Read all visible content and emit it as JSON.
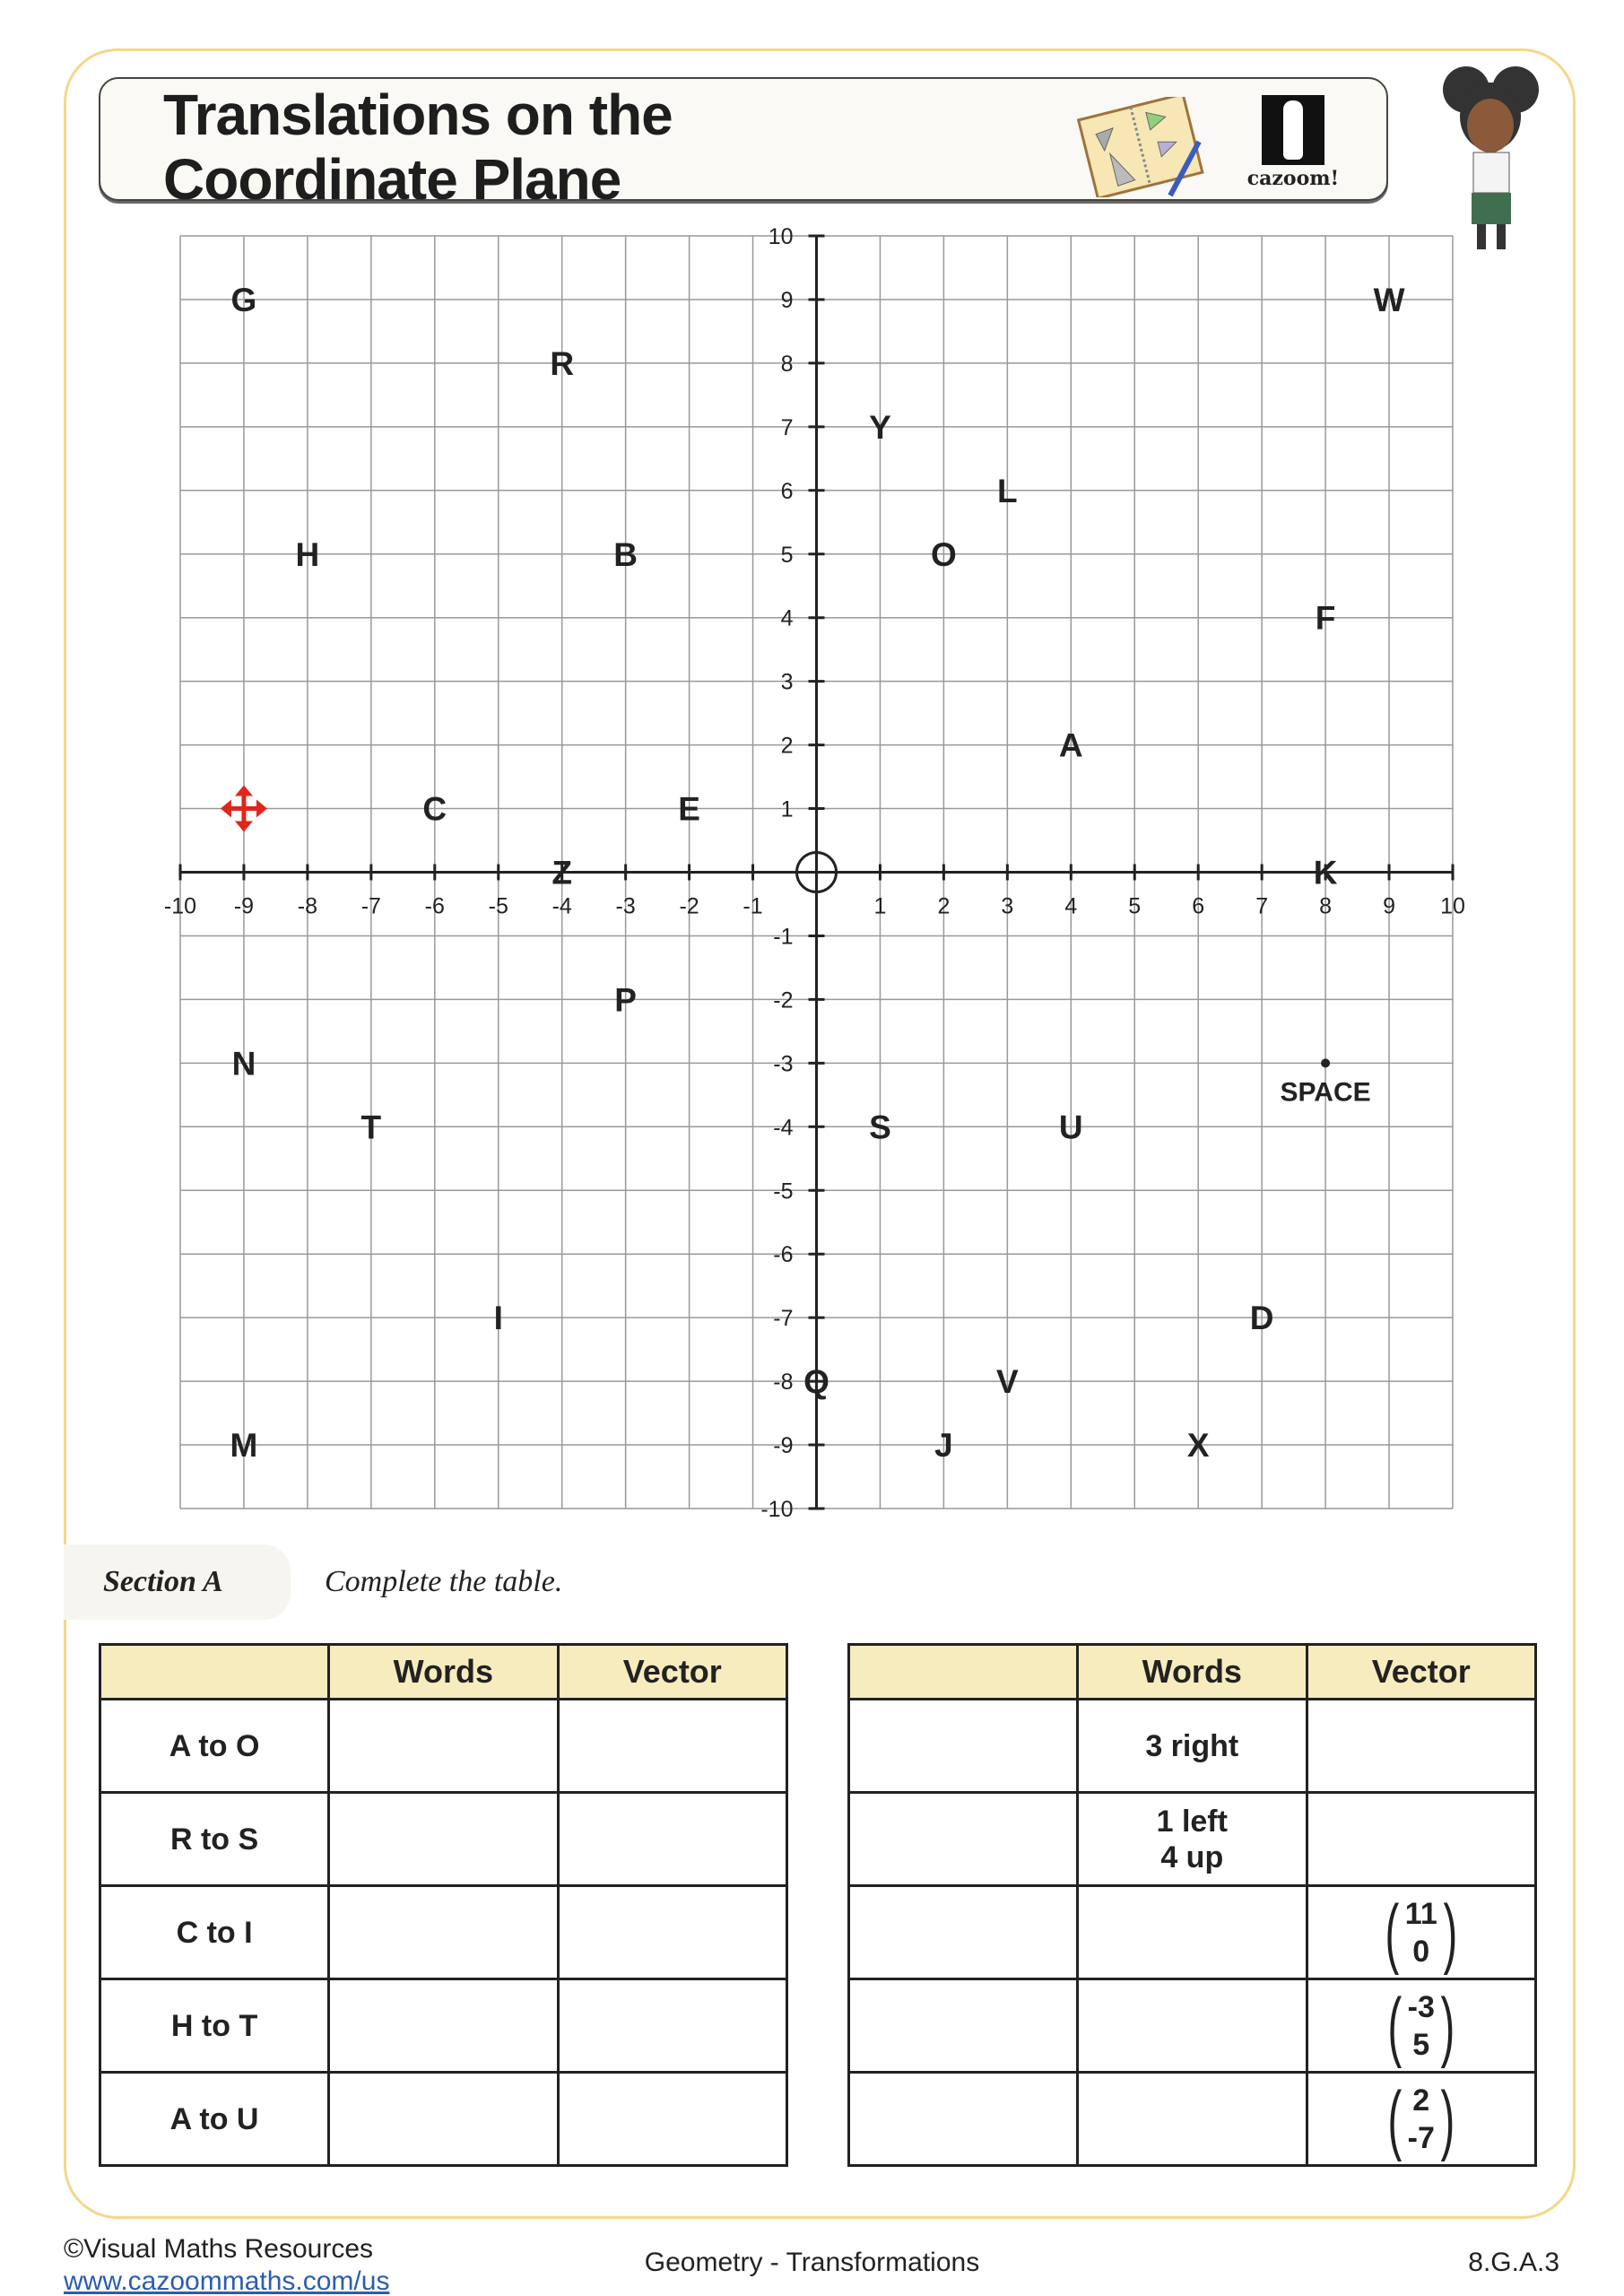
{
  "header": {
    "title_line1": "Translations on the",
    "title_line2": "Coordinate Plane",
    "logo_text": "cazoom!"
  },
  "grid": {
    "xlim": [
      -10,
      10
    ],
    "ylim": [
      -10,
      10
    ],
    "x_ticks": [
      -10,
      -9,
      -8,
      -7,
      -6,
      -5,
      -4,
      -3,
      -2,
      -1,
      1,
      2,
      3,
      4,
      5,
      6,
      7,
      8,
      9,
      10
    ],
    "y_ticks": [
      10,
      9,
      8,
      7,
      6,
      5,
      4,
      3,
      2,
      1,
      -1,
      -2,
      -3,
      -4,
      -5,
      -6,
      -7,
      -8,
      -9,
      -10
    ],
    "points": [
      {
        "label": "G",
        "x": -9,
        "y": 9
      },
      {
        "label": "R",
        "x": -4,
        "y": 8
      },
      {
        "label": "W",
        "x": 9,
        "y": 9
      },
      {
        "label": "Y",
        "x": 1,
        "y": 7
      },
      {
        "label": "L",
        "x": 3,
        "y": 6
      },
      {
        "label": "H",
        "x": -8,
        "y": 5
      },
      {
        "label": "B",
        "x": -3,
        "y": 5
      },
      {
        "label": "O",
        "x": 2,
        "y": 5
      },
      {
        "label": "F",
        "x": 8,
        "y": 4
      },
      {
        "label": "A",
        "x": 4,
        "y": 2
      },
      {
        "label": "C",
        "x": -6,
        "y": 1
      },
      {
        "label": "E",
        "x": -2,
        "y": 1
      },
      {
        "label": "Z",
        "x": -4,
        "y": 0
      },
      {
        "label": "K",
        "x": 8,
        "y": 0
      },
      {
        "label": "P",
        "x": -3,
        "y": -2
      },
      {
        "label": "N",
        "x": -9,
        "y": -3
      },
      {
        "label": "T",
        "x": -7,
        "y": -4
      },
      {
        "label": "S",
        "x": 1,
        "y": -4
      },
      {
        "label": "U",
        "x": 4,
        "y": -4
      },
      {
        "label": "I",
        "x": -5,
        "y": -7
      },
      {
        "label": "D",
        "x": 7,
        "y": -7
      },
      {
        "label": "Q",
        "x": 0,
        "y": -8
      },
      {
        "label": "V",
        "x": 3,
        "y": -8
      },
      {
        "label": "M",
        "x": -9,
        "y": -9
      },
      {
        "label": "J",
        "x": 2,
        "y": -9
      },
      {
        "label": "X",
        "x": 6,
        "y": -9
      }
    ],
    "space": {
      "label": "SPACE",
      "x": 8,
      "y": -3
    },
    "move_marker": {
      "icon": "move-arrows-icon",
      "x": -9,
      "y": 1,
      "color": "#e0261b"
    },
    "origin_marker": "circle"
  },
  "section": {
    "label": "Section A",
    "instruction": "Complete the table."
  },
  "left_table": {
    "headers": [
      "",
      "Words",
      "Vector"
    ],
    "rows": [
      {
        "label": "A to O",
        "words": "",
        "vector": null
      },
      {
        "label": "R to S",
        "words": "",
        "vector": null
      },
      {
        "label": "C to I",
        "words": "",
        "vector": null
      },
      {
        "label": "H to T",
        "words": "",
        "vector": null
      },
      {
        "label": "A to U",
        "words": "",
        "vector": null
      }
    ]
  },
  "right_table": {
    "headers": [
      "",
      "Words",
      "Vector"
    ],
    "rows": [
      {
        "label": "",
        "words": [
          "3 right"
        ],
        "vector": null
      },
      {
        "label": "",
        "words": [
          "1 left",
          "4 up"
        ],
        "vector": null
      },
      {
        "label": "",
        "words": [],
        "vector": [
          "11",
          "0"
        ]
      },
      {
        "label": "",
        "words": [],
        "vector": [
          "-3",
          "5"
        ]
      },
      {
        "label": "",
        "words": [],
        "vector": [
          "2",
          "-7"
        ]
      }
    ]
  },
  "footer": {
    "copyright": "©Visual Maths Resources",
    "url": "www.cazoommaths.com/us",
    "topic": "Geometry - Transformations",
    "standard": "8.G.A.3"
  },
  "colors": {
    "frame": "#f4d78a",
    "table_header": "#f6ecbe",
    "marker": "#e0261b"
  }
}
